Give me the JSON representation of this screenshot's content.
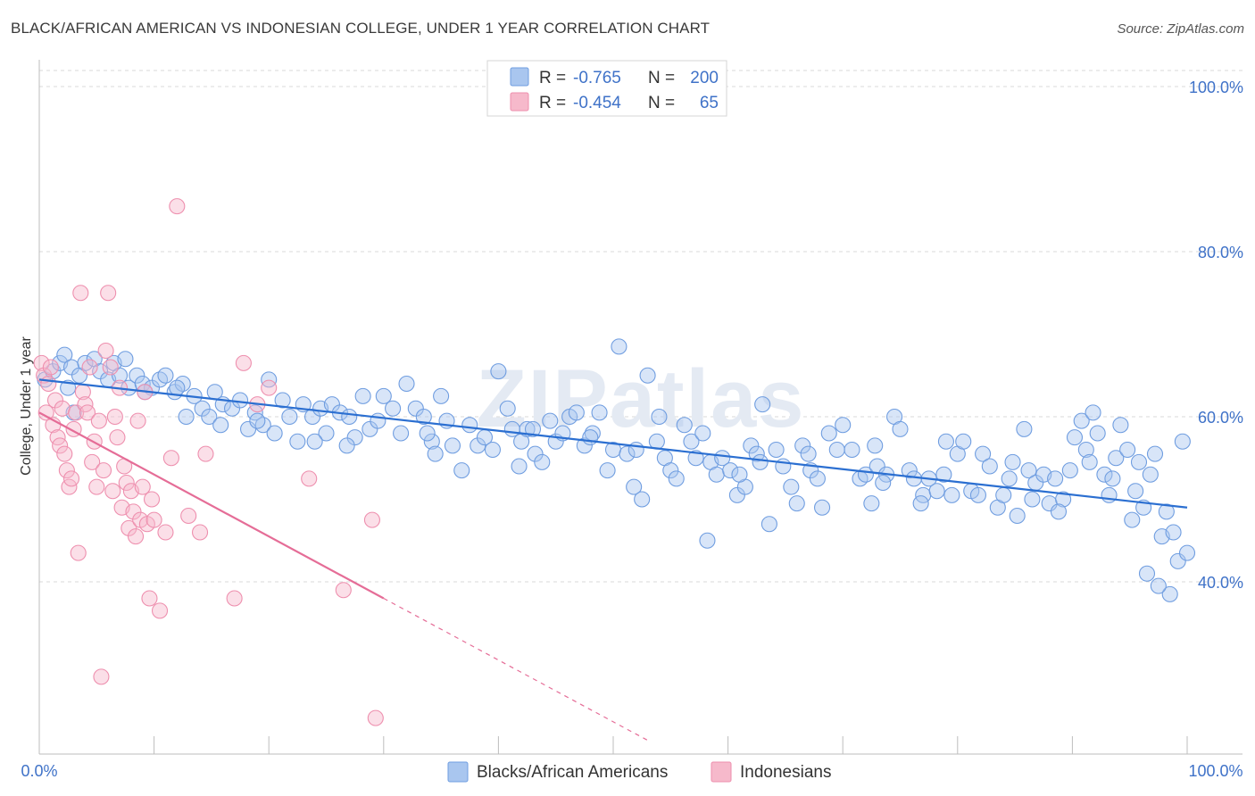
{
  "title": "BLACK/AFRICAN AMERICAN VS INDONESIAN COLLEGE, UNDER 1 YEAR CORRELATION CHART",
  "source": "Source: ZipAtlas.com",
  "watermark": "ZIPatlas",
  "colors": {
    "blue_fill": "#a9c6ef",
    "blue_stroke": "#6f9de0",
    "blue_line": "#2b6fd1",
    "pink_fill": "#f6b9cb",
    "pink_stroke": "#ee8fae",
    "pink_line": "#e56d97",
    "axis_label": "#3f72c8",
    "grid": "#d9d9d9"
  },
  "legend": {
    "rows": [
      {
        "r_label": "R =",
        "r_value": "-0.765",
        "n_label": "N =",
        "n_value": "200"
      },
      {
        "r_label": "R =",
        "r_value": "-0.454",
        "n_label": "N =",
        "n_value": "65"
      }
    ]
  },
  "chart_data": {
    "type": "scatter",
    "xlabel": "",
    "ylabel": "College, Under 1 year",
    "xlim": [
      0,
      100
    ],
    "ylim": [
      20,
      104
    ],
    "x_tick_labels": [
      "0.0%",
      "100.0%"
    ],
    "y_ticks": [
      40,
      60,
      80,
      100
    ],
    "y_tick_labels": [
      "40.0%",
      "60.0%",
      "80.0%",
      "100.0%"
    ],
    "series": [
      {
        "name": "Blacks/African Americans",
        "trend": {
          "x0": 0,
          "y0": 64.5,
          "x1": 100,
          "y1": 49.0
        },
        "points": [
          [
            0.5,
            64.5
          ],
          [
            1.2,
            65.5
          ],
          [
            1.8,
            66.5
          ],
          [
            2.2,
            67.5
          ],
          [
            2.8,
            66.0
          ],
          [
            3.5,
            65.0
          ],
          [
            4.0,
            66.5
          ],
          [
            4.8,
            67.0
          ],
          [
            5.3,
            65.5
          ],
          [
            6.0,
            64.5
          ],
          [
            6.5,
            66.5
          ],
          [
            7.0,
            65.0
          ],
          [
            7.8,
            63.5
          ],
          [
            8.5,
            65.0
          ],
          [
            9.0,
            64.0
          ],
          [
            9.8,
            63.5
          ],
          [
            10.5,
            64.5
          ],
          [
            11.0,
            65.0
          ],
          [
            11.8,
            63.0
          ],
          [
            12.5,
            64.0
          ],
          [
            12.8,
            60.0
          ],
          [
            13.5,
            62.5
          ],
          [
            14.2,
            61.0
          ],
          [
            14.8,
            60.0
          ],
          [
            15.3,
            63.0
          ],
          [
            16.0,
            61.5
          ],
          [
            16.8,
            61.0
          ],
          [
            17.5,
            62.0
          ],
          [
            18.2,
            58.5
          ],
          [
            18.8,
            60.5
          ],
          [
            19.5,
            59.0
          ],
          [
            20.0,
            64.5
          ],
          [
            20.5,
            58.0
          ],
          [
            21.2,
            62.0
          ],
          [
            21.8,
            60.0
          ],
          [
            22.5,
            57.0
          ],
          [
            23.0,
            61.5
          ],
          [
            23.8,
            60.0
          ],
          [
            24.5,
            61.0
          ],
          [
            25.0,
            58.0
          ],
          [
            25.5,
            61.5
          ],
          [
            26.2,
            60.5
          ],
          [
            27.0,
            60.0
          ],
          [
            27.5,
            57.5
          ],
          [
            28.2,
            62.5
          ],
          [
            28.8,
            58.5
          ],
          [
            29.5,
            59.5
          ],
          [
            30.0,
            62.5
          ],
          [
            30.8,
            61.0
          ],
          [
            31.5,
            58.0
          ],
          [
            32.0,
            64.0
          ],
          [
            32.8,
            61.0
          ],
          [
            33.5,
            60.0
          ],
          [
            34.2,
            57.0
          ],
          [
            35.0,
            62.5
          ],
          [
            35.5,
            59.5
          ],
          [
            36.0,
            56.5
          ],
          [
            36.8,
            53.5
          ],
          [
            37.5,
            59.0
          ],
          [
            38.2,
            56.5
          ],
          [
            38.8,
            57.5
          ],
          [
            39.5,
            56.0
          ],
          [
            40.0,
            65.5
          ],
          [
            40.8,
            61.0
          ],
          [
            41.2,
            58.5
          ],
          [
            42.0,
            57.0
          ],
          [
            42.5,
            58.5
          ],
          [
            43.2,
            55.5
          ],
          [
            43.8,
            54.5
          ],
          [
            44.5,
            59.5
          ],
          [
            45.0,
            57.0
          ],
          [
            45.6,
            58.0
          ],
          [
            46.2,
            60.0
          ],
          [
            46.8,
            60.5
          ],
          [
            47.5,
            56.5
          ],
          [
            48.2,
            58.0
          ],
          [
            48.8,
            60.5
          ],
          [
            49.5,
            53.5
          ],
          [
            50.0,
            56.0
          ],
          [
            50.5,
            68.5
          ],
          [
            51.2,
            55.5
          ],
          [
            51.8,
            51.5
          ],
          [
            52.5,
            50.0
          ],
          [
            53.0,
            65.0
          ],
          [
            53.8,
            57.0
          ],
          [
            54.5,
            55.0
          ],
          [
            55.0,
            53.5
          ],
          [
            55.5,
            52.5
          ],
          [
            56.2,
            59.0
          ],
          [
            56.8,
            57.0
          ],
          [
            57.2,
            55.0
          ],
          [
            57.8,
            58.0
          ],
          [
            58.5,
            54.5
          ],
          [
            59.0,
            53.0
          ],
          [
            59.5,
            55.0
          ],
          [
            60.2,
            53.5
          ],
          [
            60.8,
            50.5
          ],
          [
            61.5,
            51.5
          ],
          [
            62.0,
            56.5
          ],
          [
            62.5,
            55.5
          ],
          [
            63.0,
            61.5
          ],
          [
            63.6,
            47.0
          ],
          [
            64.2,
            56.0
          ],
          [
            64.8,
            54.0
          ],
          [
            65.5,
            51.5
          ],
          [
            66.0,
            49.5
          ],
          [
            66.5,
            56.5
          ],
          [
            67.2,
            53.5
          ],
          [
            67.8,
            52.5
          ],
          [
            68.2,
            49.0
          ],
          [
            68.8,
            58.0
          ],
          [
            69.5,
            56.0
          ],
          [
            70.0,
            59.0
          ],
          [
            70.8,
            56.0
          ],
          [
            71.5,
            52.5
          ],
          [
            72.0,
            53.0
          ],
          [
            72.5,
            49.5
          ],
          [
            73.0,
            54.0
          ],
          [
            73.8,
            53.0
          ],
          [
            74.5,
            60.0
          ],
          [
            75.0,
            58.5
          ],
          [
            75.8,
            53.5
          ],
          [
            76.2,
            52.5
          ],
          [
            77.0,
            50.5
          ],
          [
            77.5,
            52.5
          ],
          [
            78.2,
            51.0
          ],
          [
            78.8,
            53.0
          ],
          [
            79.5,
            50.5
          ],
          [
            80.0,
            55.5
          ],
          [
            80.5,
            57.0
          ],
          [
            81.2,
            51.0
          ],
          [
            81.8,
            50.5
          ],
          [
            82.2,
            55.5
          ],
          [
            82.8,
            54.0
          ],
          [
            83.5,
            49.0
          ],
          [
            84.0,
            50.5
          ],
          [
            84.5,
            52.5
          ],
          [
            85.2,
            48.0
          ],
          [
            85.8,
            58.5
          ],
          [
            86.2,
            53.5
          ],
          [
            86.8,
            52.0
          ],
          [
            87.5,
            53.0
          ],
          [
            88.0,
            49.5
          ],
          [
            88.5,
            52.5
          ],
          [
            89.2,
            50.0
          ],
          [
            89.8,
            53.5
          ],
          [
            90.2,
            57.5
          ],
          [
            90.8,
            59.5
          ],
          [
            91.2,
            56.0
          ],
          [
            91.8,
            60.5
          ],
          [
            92.2,
            58.0
          ],
          [
            92.8,
            53.0
          ],
          [
            93.2,
            50.5
          ],
          [
            93.8,
            55.0
          ],
          [
            94.2,
            59.0
          ],
          [
            94.8,
            56.0
          ],
          [
            95.2,
            47.5
          ],
          [
            95.8,
            54.5
          ],
          [
            96.2,
            49.0
          ],
          [
            96.8,
            53.0
          ],
          [
            97.2,
            55.5
          ],
          [
            97.8,
            45.5
          ],
          [
            98.2,
            48.5
          ],
          [
            98.8,
            46.0
          ],
          [
            99.2,
            42.5
          ],
          [
            99.6,
            57.0
          ],
          [
            100.0,
            43.5
          ],
          [
            98.5,
            38.5
          ],
          [
            97.5,
            39.5
          ],
          [
            96.5,
            41.0
          ],
          [
            3.0,
            60.5
          ],
          [
            7.5,
            67.0
          ],
          [
            12.0,
            63.5
          ],
          [
            19.0,
            59.5
          ],
          [
            26.8,
            56.5
          ],
          [
            34.5,
            55.5
          ],
          [
            41.8,
            54.0
          ],
          [
            48.0,
            57.5
          ],
          [
            54.0,
            60.0
          ],
          [
            61.0,
            53.0
          ],
          [
            67.0,
            55.5
          ],
          [
            72.8,
            56.5
          ],
          [
            79.0,
            57.0
          ],
          [
            84.8,
            54.5
          ],
          [
            91.5,
            54.5
          ],
          [
            95.5,
            51.0
          ],
          [
            88.8,
            48.5
          ],
          [
            73.5,
            52.0
          ],
          [
            62.8,
            54.5
          ],
          [
            52.0,
            56.0
          ],
          [
            43.0,
            58.5
          ],
          [
            33.8,
            58.0
          ],
          [
            24.0,
            57.0
          ],
          [
            15.8,
            59.0
          ],
          [
            9.2,
            63.0
          ],
          [
            2.5,
            63.5
          ],
          [
            58.2,
            45.0
          ],
          [
            76.8,
            49.5
          ],
          [
            86.5,
            50.0
          ],
          [
            93.5,
            52.5
          ]
        ]
      },
      {
        "name": "Indonesians",
        "trend": {
          "x0": 0,
          "y0": 60.5,
          "x1": 30,
          "y1": 38.0,
          "dash_to_x": 53,
          "dash_to_y": 20.8
        },
        "points": [
          [
            0.2,
            66.5
          ],
          [
            0.4,
            65.0
          ],
          [
            0.6,
            60.5
          ],
          [
            0.8,
            64.0
          ],
          [
            1.0,
            66.0
          ],
          [
            1.2,
            59.0
          ],
          [
            1.4,
            62.0
          ],
          [
            1.6,
            57.5
          ],
          [
            1.8,
            56.5
          ],
          [
            2.0,
            61.0
          ],
          [
            2.2,
            55.5
          ],
          [
            2.4,
            53.5
          ],
          [
            2.6,
            51.5
          ],
          [
            2.8,
            52.5
          ],
          [
            3.0,
            58.5
          ],
          [
            3.2,
            60.5
          ],
          [
            3.4,
            43.5
          ],
          [
            3.6,
            75.0
          ],
          [
            3.8,
            63.0
          ],
          [
            4.0,
            61.5
          ],
          [
            4.2,
            60.5
          ],
          [
            4.4,
            66.0
          ],
          [
            4.6,
            54.5
          ],
          [
            4.8,
            57.0
          ],
          [
            5.0,
            51.5
          ],
          [
            5.2,
            59.5
          ],
          [
            5.4,
            28.5
          ],
          [
            5.6,
            53.5
          ],
          [
            5.8,
            68.0
          ],
          [
            6.0,
            75.0
          ],
          [
            6.2,
            66.0
          ],
          [
            6.4,
            51.0
          ],
          [
            6.6,
            60.0
          ],
          [
            6.8,
            57.5
          ],
          [
            7.0,
            63.5
          ],
          [
            7.2,
            49.0
          ],
          [
            7.4,
            54.0
          ],
          [
            7.6,
            52.0
          ],
          [
            7.8,
            46.5
          ],
          [
            8.0,
            51.0
          ],
          [
            8.2,
            48.5
          ],
          [
            8.4,
            45.5
          ],
          [
            8.6,
            59.5
          ],
          [
            8.8,
            47.5
          ],
          [
            9.0,
            51.5
          ],
          [
            9.2,
            63.0
          ],
          [
            9.4,
            47.0
          ],
          [
            9.6,
            38.0
          ],
          [
            9.8,
            50.0
          ],
          [
            10.0,
            47.5
          ],
          [
            10.5,
            36.5
          ],
          [
            11.0,
            46.0
          ],
          [
            11.5,
            55.0
          ],
          [
            12.0,
            85.5
          ],
          [
            13.0,
            48.0
          ],
          [
            14.0,
            46.0
          ],
          [
            14.5,
            55.5
          ],
          [
            17.0,
            38.0
          ],
          [
            17.8,
            66.5
          ],
          [
            19.0,
            61.5
          ],
          [
            20.0,
            63.5
          ],
          [
            23.5,
            52.5
          ],
          [
            26.5,
            39.0
          ],
          [
            29.0,
            47.5
          ],
          [
            29.3,
            23.5
          ]
        ]
      }
    ]
  },
  "bottom_legend": {
    "items": [
      {
        "label": "Blacks/African Americans"
      },
      {
        "label": "Indonesians"
      }
    ]
  }
}
